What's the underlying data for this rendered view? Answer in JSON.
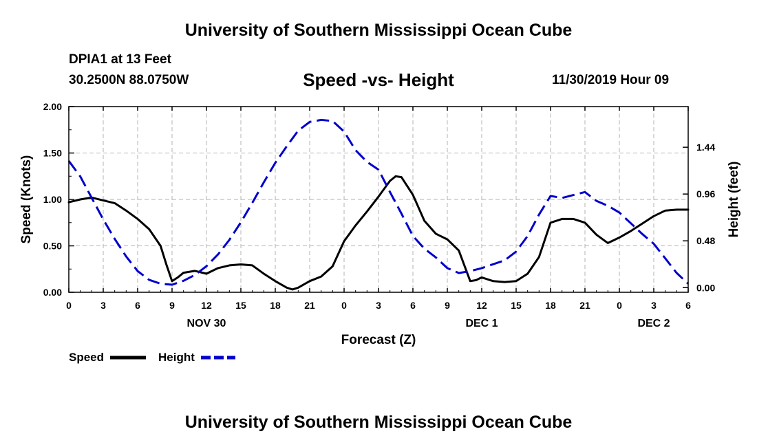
{
  "header": {
    "title": "University of Southern Mississippi Ocean Cube",
    "station": "DPIA1 at 13 Feet",
    "coords": "30.2500N 88.0750W",
    "forecast_time": "11/30/2019 Hour 09"
  },
  "footer": {
    "title": "University of Southern Mississippi Ocean Cube"
  },
  "colors": {
    "speed": "#000000",
    "height": "#0000cc",
    "grid": "#b3b3b3"
  },
  "chart_data": {
    "type": "line",
    "title": "Speed -vs- Height",
    "xlabel": "Forecast (Z)",
    "ylabel": "Speed (Knots)",
    "y2label": "Height (feet)",
    "xlim": [
      0,
      54
    ],
    "ylim": [
      0,
      2.0
    ],
    "y2lim": [
      -0.0476,
      1.8571
    ],
    "x_ticks": [
      0,
      3,
      6,
      9,
      12,
      15,
      18,
      21,
      24,
      27,
      30,
      33,
      36,
      39,
      42,
      45,
      48,
      51,
      54
    ],
    "x_tick_labels": [
      "0",
      "3",
      "6",
      "9",
      "12",
      "15",
      "18",
      "21",
      "0",
      "3",
      "6",
      "9",
      "12",
      "15",
      "18",
      "21",
      "0",
      "3",
      "6"
    ],
    "y_ticks": [
      0,
      0.5,
      1.0,
      1.5,
      2.0
    ],
    "y_tick_labels": [
      "0.00",
      "0.50",
      "1.00",
      "1.50",
      "2.00"
    ],
    "y2_ticks": [
      0,
      0.48,
      0.96,
      1.44
    ],
    "y2_tick_labels": [
      "0.00",
      "0.48",
      "0.96",
      "1.44"
    ],
    "day_labels": [
      {
        "x": 12,
        "label": "NOV 30"
      },
      {
        "x": 36,
        "label": "DEC 1"
      },
      {
        "x": 51,
        "label": "DEC 2"
      }
    ],
    "grid": true,
    "legend_position": "bottom-left",
    "series": [
      {
        "name": "Speed",
        "axis": "left",
        "style": "solid",
        "x": [
          0,
          1,
          2,
          3,
          4,
          5,
          6,
          7,
          8,
          8.5,
          9,
          9.5,
          10,
          11,
          12,
          13,
          14,
          15,
          16,
          17,
          18,
          19,
          19.5,
          20,
          21,
          22,
          23,
          24,
          25,
          26,
          27,
          28,
          28.5,
          29,
          30,
          31,
          32,
          33,
          34,
          35,
          35.5,
          36,
          37,
          38,
          39,
          40,
          41,
          42,
          43,
          44,
          45,
          46,
          47,
          48,
          49,
          50,
          51,
          52,
          53,
          54
        ],
        "values": [
          0.97,
          1.0,
          1.02,
          0.99,
          0.96,
          0.88,
          0.79,
          0.68,
          0.5,
          0.3,
          0.12,
          0.16,
          0.21,
          0.23,
          0.2,
          0.26,
          0.29,
          0.3,
          0.29,
          0.2,
          0.12,
          0.05,
          0.03,
          0.05,
          0.12,
          0.17,
          0.28,
          0.55,
          0.72,
          0.87,
          1.03,
          1.2,
          1.25,
          1.24,
          1.05,
          0.77,
          0.63,
          0.57,
          0.45,
          0.12,
          0.13,
          0.16,
          0.12,
          0.11,
          0.12,
          0.2,
          0.38,
          0.75,
          0.79,
          0.79,
          0.75,
          0.62,
          0.53,
          0.59,
          0.66,
          0.74,
          0.82,
          0.88,
          0.89,
          0.89
        ]
      },
      {
        "name": "Height",
        "axis": "right",
        "style": "dashed",
        "x": [
          0,
          1,
          2,
          3,
          4,
          5,
          6,
          7,
          8,
          9,
          10,
          11,
          12,
          13,
          14,
          15,
          16,
          17,
          18,
          19,
          20,
          21,
          22,
          23,
          24,
          25,
          26,
          27,
          28,
          29,
          30,
          31,
          32,
          33,
          34,
          35,
          36,
          37,
          38,
          39,
          40,
          41,
          42,
          43,
          44,
          45,
          46,
          47,
          48,
          49,
          50,
          51,
          52,
          53,
          54
        ],
        "values": [
          1.3,
          1.14,
          0.92,
          0.7,
          0.5,
          0.32,
          0.17,
          0.08,
          0.04,
          0.03,
          0.07,
          0.13,
          0.22,
          0.34,
          0.49,
          0.67,
          0.87,
          1.08,
          1.28,
          1.45,
          1.61,
          1.7,
          1.72,
          1.71,
          1.6,
          1.41,
          1.29,
          1.21,
          0.98,
          0.76,
          0.53,
          0.4,
          0.31,
          0.2,
          0.15,
          0.17,
          0.2,
          0.24,
          0.28,
          0.37,
          0.53,
          0.75,
          0.94,
          0.92,
          0.95,
          0.98,
          0.89,
          0.84,
          0.77,
          0.66,
          0.55,
          0.45,
          0.3,
          0.15,
          0.04
        ]
      }
    ]
  }
}
